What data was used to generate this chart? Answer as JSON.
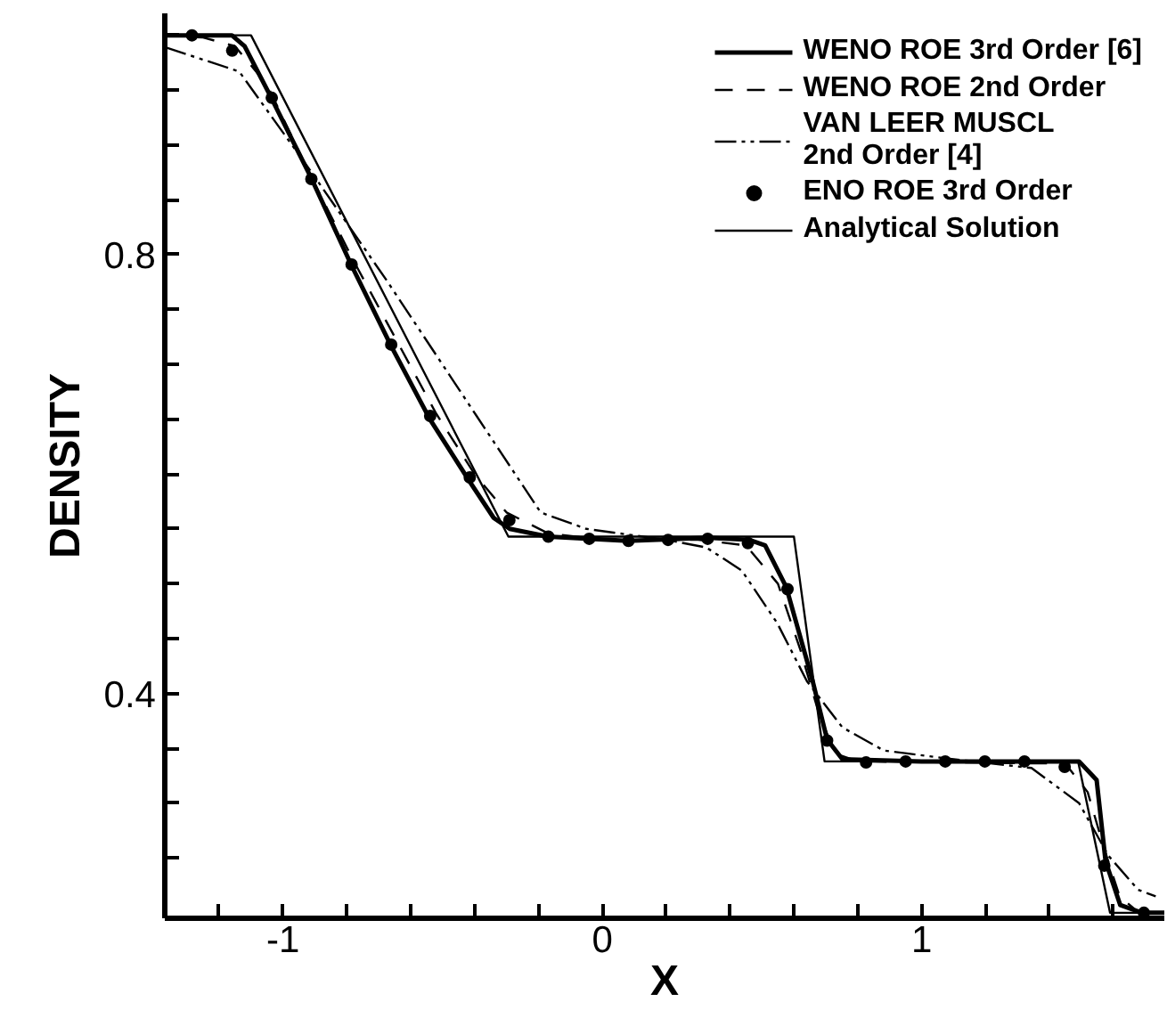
{
  "chart_data": {
    "type": "line",
    "xlabel": "X",
    "ylabel": "DENSITY",
    "xlim": [
      -1.37,
      1.76
    ],
    "ylim": [
      0.195,
      1.02
    ],
    "xticks": [
      {
        "value": -1.2,
        "label": null
      },
      -1,
      {
        "value": -0.8,
        "label": null
      },
      {
        "value": -0.6,
        "label": null
      },
      {
        "value": -0.4,
        "label": null
      },
      {
        "value": -0.2,
        "label": null
      },
      0,
      {
        "value": 0.2,
        "label": null
      },
      {
        "value": 0.4,
        "label": null
      },
      {
        "value": 0.6,
        "label": null
      },
      {
        "value": 0.8,
        "label": null
      },
      1,
      {
        "value": 1.2,
        "label": null
      },
      {
        "value": 1.4,
        "label": null
      },
      {
        "value": 1.6,
        "label": null
      }
    ],
    "yticks": [
      {
        "value": 0.25,
        "label": null
      },
      {
        "value": 0.3,
        "label": null
      },
      {
        "value": 0.35,
        "label": null
      },
      0.4,
      {
        "value": 0.45,
        "label": null
      },
      {
        "value": 0.5,
        "label": null
      },
      {
        "value": 0.55,
        "label": null
      },
      {
        "value": 0.6,
        "label": null
      },
      {
        "value": 0.65,
        "label": null
      },
      {
        "value": 0.7,
        "label": null
      },
      {
        "value": 0.75,
        "label": null
      },
      0.8,
      {
        "value": 0.85,
        "label": null
      },
      {
        "value": 0.9,
        "label": null
      },
      {
        "value": 0.95,
        "label": null
      },
      {
        "value": 1.0,
        "label": null
      }
    ],
    "grid": false,
    "legend": "top right",
    "series": [
      {
        "name": "WENO ROE 3rd Order [6]",
        "color": "#000000",
        "line_style": "solid",
        "marker": "none",
        "x": [
          -1.37,
          -1.2,
          -1.16,
          -1.12,
          -1.04,
          -0.91,
          -0.785,
          -0.66,
          -0.54,
          -0.415,
          -0.34,
          -0.29,
          -0.17,
          0.08,
          0.33,
          0.46,
          0.51,
          0.576,
          0.659,
          0.704,
          0.752,
          1.0,
          1.493,
          1.548,
          1.576,
          1.622,
          1.69,
          1.76
        ],
        "values": [
          1.0,
          1.0,
          1.0,
          0.99,
          0.945,
          0.869,
          0.79,
          0.716,
          0.65,
          0.593,
          0.56,
          0.55,
          0.543,
          0.539,
          0.542,
          0.54,
          0.535,
          0.497,
          0.411,
          0.358,
          0.34,
          0.338,
          0.338,
          0.321,
          0.247,
          0.207,
          0.2,
          0.2
        ]
      },
      {
        "name": "WENO ROE 2nd Order",
        "color": "#000000",
        "line_style": "dashed",
        "marker": "none",
        "x": [
          -1.37,
          -1.25,
          -1.15,
          -1.05,
          -0.91,
          -0.78,
          -0.65,
          -0.52,
          -0.4,
          -0.3,
          -0.17,
          0.0,
          0.3,
          0.45,
          0.55,
          0.62,
          0.68,
          0.73,
          0.8,
          1.45,
          1.52,
          1.57,
          1.62,
          1.68,
          1.76
        ],
        "values": [
          1.0,
          0.998,
          0.99,
          0.955,
          0.87,
          0.795,
          0.725,
          0.655,
          0.6,
          0.565,
          0.546,
          0.54,
          0.54,
          0.535,
          0.5,
          0.44,
          0.38,
          0.345,
          0.338,
          0.336,
          0.31,
          0.26,
          0.215,
          0.2,
          0.2
        ]
      },
      {
        "name": "VAN LEER MUSCL\n2nd Order [4]",
        "color": "#000000",
        "line_style": "dashdotdot",
        "marker": "none",
        "x": [
          -1.368,
          -1.137,
          -0.915,
          -0.674,
          -0.396,
          -0.193,
          -0.05,
          0.201,
          0.326,
          0.437,
          0.548,
          0.641,
          0.752,
          0.881,
          1.07,
          1.344,
          1.493,
          1.585,
          1.678,
          1.733
        ],
        "values": [
          0.989,
          0.967,
          0.877,
          0.776,
          0.654,
          0.565,
          0.55,
          0.54,
          0.533,
          0.512,
          0.464,
          0.411,
          0.369,
          0.348,
          0.341,
          0.332,
          0.3,
          0.252,
          0.221,
          0.215
        ]
      },
      {
        "name": "ENO ROE 3rd Order",
        "color": "#000000",
        "type": "scatter",
        "marker": "circle",
        "x": [
          -1.285,
          -1.159,
          -1.035,
          -0.911,
          -0.785,
          -0.661,
          -0.539,
          -0.415,
          -0.291,
          -0.169,
          -0.041,
          0.082,
          0.206,
          0.33,
          0.456,
          0.58,
          0.704,
          0.826,
          0.95,
          1.074,
          1.198,
          1.322,
          1.448,
          1.572,
          1.696
        ],
        "values": [
          1.0,
          0.986,
          0.943,
          0.869,
          0.791,
          0.718,
          0.653,
          0.597,
          0.558,
          0.543,
          0.541,
          0.539,
          0.54,
          0.541,
          0.537,
          0.495,
          0.357,
          0.337,
          0.338,
          0.338,
          0.338,
          0.338,
          0.333,
          0.243,
          0.2
        ]
      },
      {
        "name": "Analytical Solution",
        "color": "#000000",
        "line_style": "solid",
        "marker": "none",
        "x": [
          -1.37,
          -1.1,
          -0.294,
          0.6,
          0.696,
          1.49,
          1.59,
          1.76
        ],
        "values": [
          1.0,
          1.0,
          0.543,
          0.543,
          0.338,
          0.338,
          0.2,
          0.2
        ]
      }
    ]
  }
}
